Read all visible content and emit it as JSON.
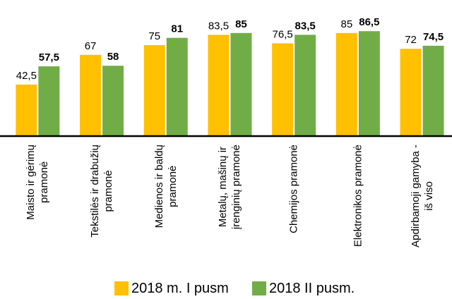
{
  "chart_data": {
    "type": "bar",
    "categories": [
      "Maisto ir gėrimų\npramonė",
      "Tekstilės ir drabužių\npramonė",
      "Medienos ir baldų\npramonė",
      "Metalų, mašinų ir\nįrenginių pramonė",
      "Chemijos pramonė",
      "Elektronikos pramonė",
      "Apdirbamoji gamyba -\niš viso"
    ],
    "series": [
      {
        "name": "2018 m. I pusm",
        "color": "#FFC000",
        "values": [
          42.5,
          67,
          75,
          83.5,
          76.5,
          85,
          72
        ],
        "value_labels": [
          "42,5",
          "67",
          "75",
          "83,5",
          "76,5",
          "85",
          "72"
        ]
      },
      {
        "name": "2018 II pusm.",
        "color": "#70AD47",
        "values": [
          57.5,
          58,
          81,
          85,
          83.5,
          86.5,
          74.5
        ],
        "value_labels": [
          "57,5",
          "58",
          "81",
          "85",
          "83,5",
          "86,5",
          "74,5"
        ]
      }
    ]
  }
}
